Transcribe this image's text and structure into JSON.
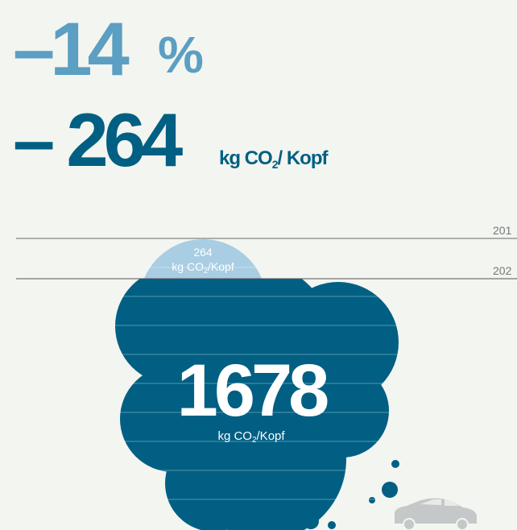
{
  "headline": {
    "percent": {
      "value": "–14",
      "unit": "%"
    },
    "absolute": {
      "value": "– 264",
      "unit": "kg CO",
      "unit_sub": "2",
      "unit_suffix": "/ Kopf"
    }
  },
  "timeline": {
    "labels": [
      "201",
      "202"
    ]
  },
  "cloud": {
    "reduction": {
      "value": "264",
      "unit": "kg CO",
      "unit_sub": "2",
      "unit_suffix": "/Kopf"
    },
    "total": {
      "value": "1678",
      "unit": "kg CO",
      "unit_sub": "2",
      "unit_suffix": "/Kopf"
    }
  }
}
